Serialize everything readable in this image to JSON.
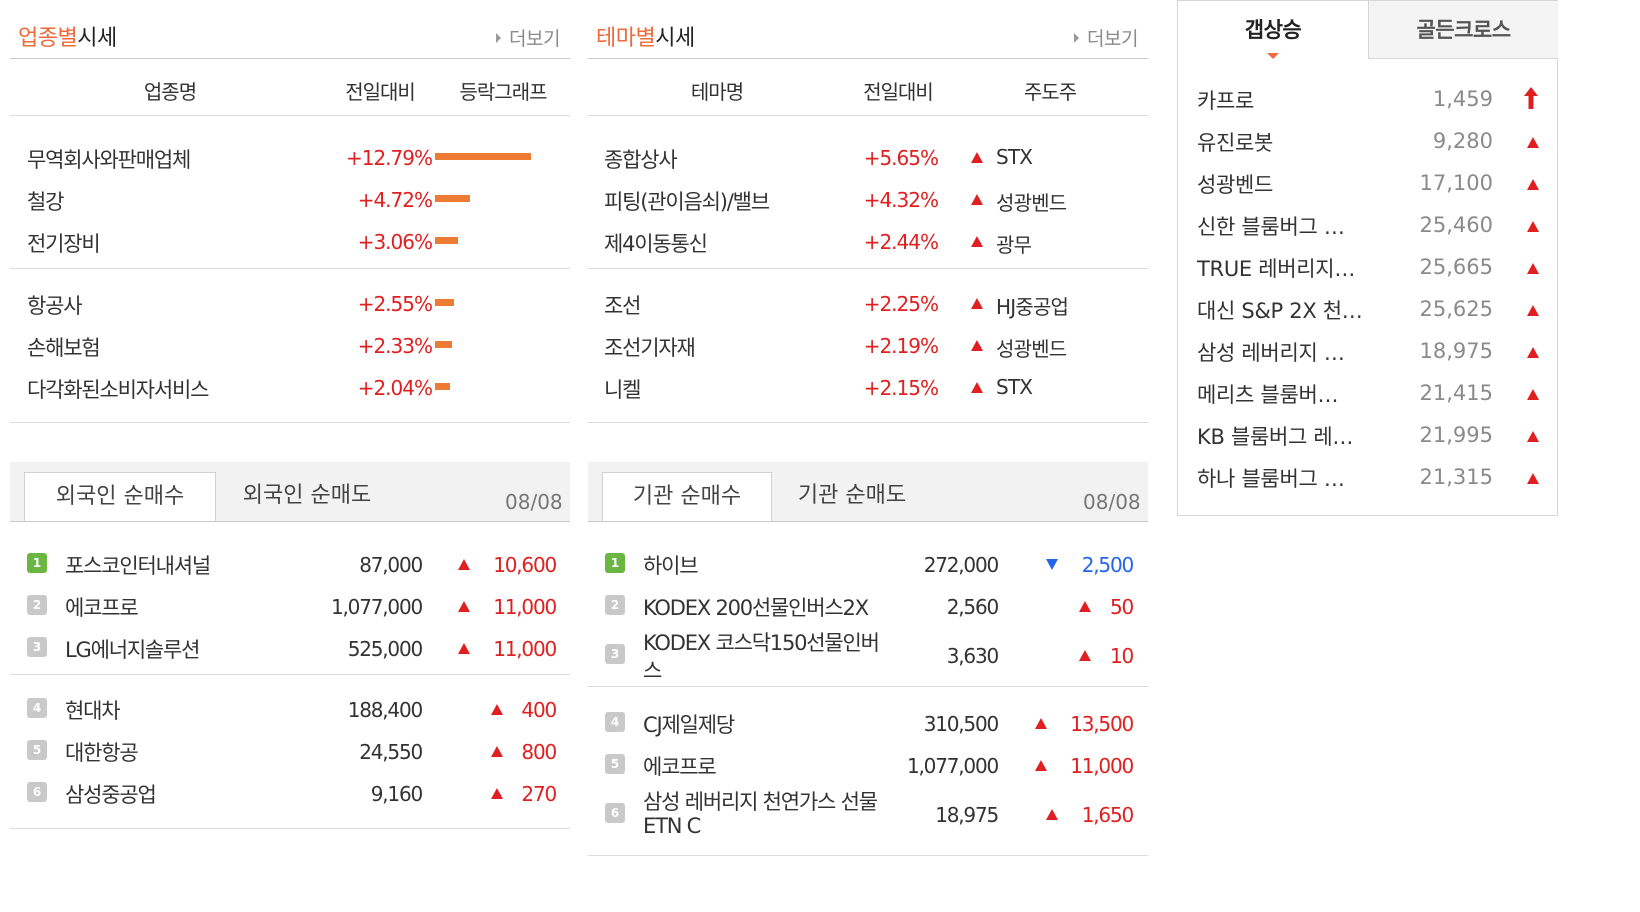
{
  "industry": {
    "title_accent": "업종별",
    "title_rest": "시세",
    "more": "더보기",
    "headers": [
      "업종명",
      "전일대비",
      "등락그래프"
    ],
    "rows": [
      {
        "name": "무역회사와판매업체",
        "change": "+12.79%",
        "value": 12.79
      },
      {
        "name": "철강",
        "change": "+4.72%",
        "value": 4.72
      },
      {
        "name": "전기장비",
        "change": "+3.06%",
        "value": 3.06
      },
      {
        "name": "항공사",
        "change": "+2.55%",
        "value": 2.55
      },
      {
        "name": "손해보험",
        "change": "+2.33%",
        "value": 2.33
      },
      {
        "name": "다각화된소비자서비스",
        "change": "+2.04%",
        "value": 2.04
      }
    ]
  },
  "theme": {
    "title_accent": "테마별",
    "title_rest": "시세",
    "more": "더보기",
    "headers": [
      "테마명",
      "전일대비",
      "주도주"
    ],
    "rows": [
      {
        "name": "종합상사",
        "change": "+5.65%",
        "leader": "STX"
      },
      {
        "name": "피팅(관이음쇠)/밸브",
        "change": "+4.32%",
        "leader": "성광벤드"
      },
      {
        "name": "제4이동통신",
        "change": "+2.44%",
        "leader": "광무"
      },
      {
        "name": "조선",
        "change": "+2.25%",
        "leader": "HJ중공업"
      },
      {
        "name": "조선기자재",
        "change": "+2.19%",
        "leader": "성광벤드"
      },
      {
        "name": "니켈",
        "change": "+2.15%",
        "leader": "STX"
      }
    ]
  },
  "foreign": {
    "tab_active": "외국인 순매수",
    "tab_inactive": "외국인 순매도",
    "date": "08/08",
    "rows": [
      {
        "rank": "1",
        "name": "포스코인터내셔널",
        "price": "87,000",
        "diff": "10,600",
        "dir": "up"
      },
      {
        "rank": "2",
        "name": "에코프로",
        "price": "1,077,000",
        "diff": "11,000",
        "dir": "up"
      },
      {
        "rank": "3",
        "name": "LG에너지솔루션",
        "price": "525,000",
        "diff": "11,000",
        "dir": "up"
      },
      {
        "rank": "4",
        "name": "현대차",
        "price": "188,400",
        "diff": "400",
        "dir": "up"
      },
      {
        "rank": "5",
        "name": "대한항공",
        "price": "24,550",
        "diff": "800",
        "dir": "up"
      },
      {
        "rank": "6",
        "name": "삼성중공업",
        "price": "9,160",
        "diff": "270",
        "dir": "up"
      }
    ]
  },
  "institution": {
    "tab_active": "기관 순매수",
    "tab_inactive": "기관 순매도",
    "date": "08/08",
    "rows": [
      {
        "rank": "1",
        "name": "하이브",
        "name2": "",
        "price": "272,000",
        "diff": "2,500",
        "dir": "down"
      },
      {
        "rank": "2",
        "name": "KODEX 200선물인버스2X",
        "name2": "",
        "price": "2,560",
        "diff": "50",
        "dir": "up"
      },
      {
        "rank": "3",
        "name": "KODEX 코스닥150선물인버",
        "name2": "스",
        "price": "3,630",
        "diff": "10",
        "dir": "up"
      },
      {
        "rank": "4",
        "name": "CJ제일제당",
        "name2": "",
        "price": "310,500",
        "diff": "13,500",
        "dir": "up"
      },
      {
        "rank": "5",
        "name": "에코프로",
        "name2": "",
        "price": "1,077,000",
        "diff": "11,000",
        "dir": "up"
      },
      {
        "rank": "6",
        "name": "삼성 레버리지 천연가스 선물",
        "name2": "ETN C",
        "price": "18,975",
        "diff": "1,650",
        "dir": "up"
      }
    ]
  },
  "side": {
    "tab_active": "갭상승",
    "tab_inactive": "골든크로스",
    "rows": [
      {
        "name": "카프로",
        "price": "1,459",
        "mark": "arrow"
      },
      {
        "name": "유진로봇",
        "price": "9,280",
        "mark": "up"
      },
      {
        "name": "성광벤드",
        "price": "17,100",
        "mark": "up"
      },
      {
        "name": "신한 블룸버그 …",
        "price": "25,460",
        "mark": "up"
      },
      {
        "name": "TRUE 레버리지…",
        "price": "25,665",
        "mark": "up"
      },
      {
        "name": "대신 S&P 2X 천…",
        "price": "25,625",
        "mark": "up"
      },
      {
        "name": "삼성 레버리지 …",
        "price": "18,975",
        "mark": "up"
      },
      {
        "name": "메리츠 블룸버…",
        "price": "21,415",
        "mark": "up"
      },
      {
        "name": "KB 블룸버그 레…",
        "price": "21,995",
        "mark": "up"
      },
      {
        "name": "하나 블룸버그 …",
        "price": "21,315",
        "mark": "up"
      }
    ]
  },
  "colors": {
    "accent": "#ee6a3a",
    "bar": "#ee7b33",
    "up": "#e02020",
    "down": "#2466e8",
    "rank_first": "#6bb543"
  }
}
